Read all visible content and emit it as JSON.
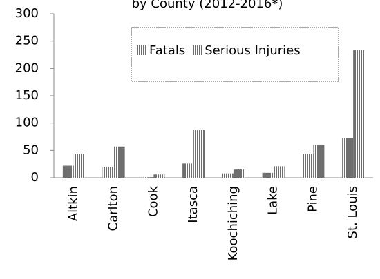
{
  "chart_data": {
    "type": "bar",
    "title": "by County (2012-2016*)",
    "categories": [
      "Aitkin",
      "Carlton",
      "Cook",
      "Itasca",
      "Koochiching",
      "Lake",
      "Pine",
      "St. Louis"
    ],
    "series": [
      {
        "name": "Fatals",
        "color": "#6e6e6e",
        "values": [
          22,
          20,
          1,
          26,
          8,
          9,
          44,
          73
        ]
      },
      {
        "name": "Serious Injuries",
        "color": "#6e6e6e",
        "values": [
          44,
          57,
          6,
          87,
          15,
          21,
          60,
          234
        ]
      }
    ],
    "ylim": [
      0,
      300
    ],
    "yticks": [
      0,
      50,
      100,
      150,
      200,
      250,
      300
    ],
    "legend": "top"
  }
}
